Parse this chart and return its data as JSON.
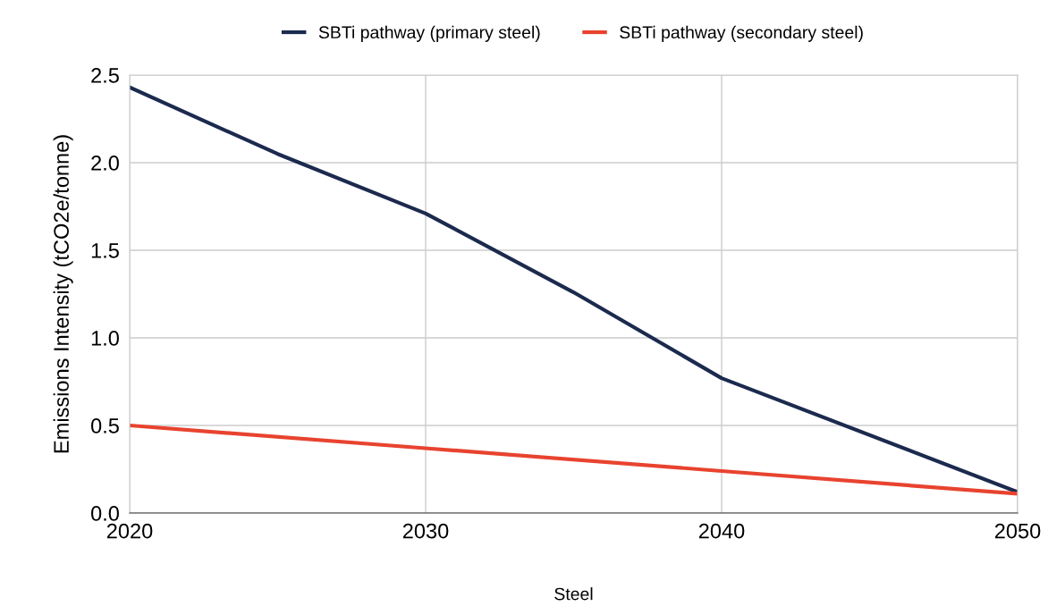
{
  "chart_data": {
    "type": "line",
    "xlabel": "Steel",
    "ylabel": "Emissions Intensity (tCO2e/tonne)",
    "series": [
      {
        "name": "SBTi pathway (primary steel)",
        "color": "#1b2a4e",
        "x": [
          2020,
          2025,
          2030,
          2035,
          2040,
          2050
        ],
        "values": [
          2.43,
          2.05,
          1.71,
          1.26,
          0.77,
          0.12
        ]
      },
      {
        "name": "SBTi pathway (secondary steel)",
        "color": "#e8432f",
        "x": [
          2020,
          2030,
          2040,
          2050
        ],
        "values": [
          0.5,
          0.37,
          0.24,
          0.11
        ]
      }
    ],
    "xlim": [
      2020,
      2050
    ],
    "xticks": [
      2020,
      2030,
      2040,
      2050
    ],
    "ylim": [
      0,
      2.5
    ],
    "yticks": [
      {
        "value": 0,
        "label": "0.0"
      },
      {
        "value": 0.5,
        "label": "0.5"
      },
      {
        "value": 1,
        "label": "1.0"
      },
      {
        "value": 1.5,
        "label": "1.5"
      },
      {
        "value": 2,
        "label": "2.0"
      },
      {
        "value": 2.5,
        "label": "2.5"
      }
    ],
    "grid": true,
    "legend": "top",
    "marker": "none",
    "line_style": "solid"
  }
}
